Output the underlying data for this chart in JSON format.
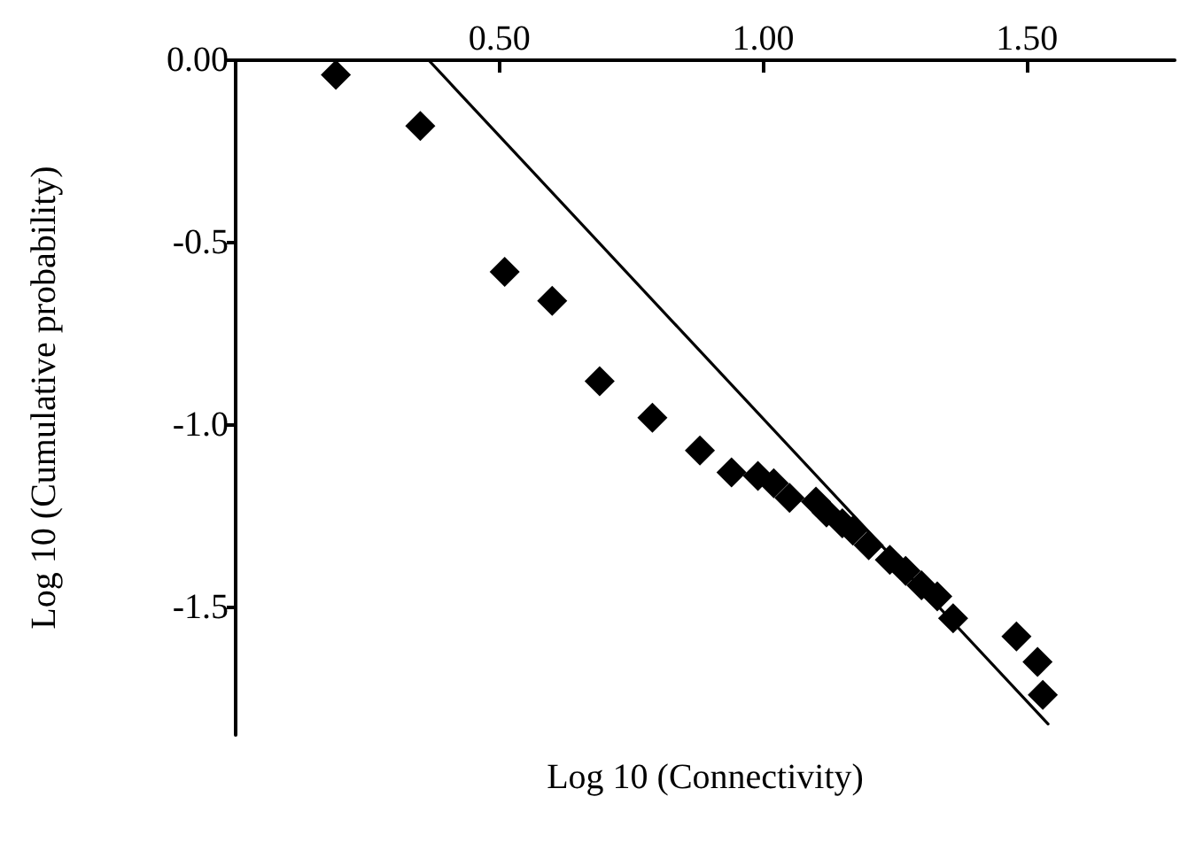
{
  "chart_data": {
    "type": "scatter",
    "xlabel": "Log 10 (Connectivity)",
    "ylabel": "Log 10 (Cumulative probability)",
    "xlim": [
      0,
      1.78
    ],
    "ylim": [
      -1.85,
      0
    ],
    "xticks": [
      {
        "value": 0.5,
        "label": "0.50"
      },
      {
        "value": 1,
        "label": "1.00"
      },
      {
        "value": 1.5,
        "label": "1.50"
      }
    ],
    "yticks": [
      {
        "value": 0,
        "label": "0.00"
      },
      -0.5,
      {
        "value": -1,
        "label": "-1.0"
      },
      -1.5
    ],
    "grid": false,
    "marker": "diamond",
    "series": [
      {
        "color": "#000000",
        "x": [
          0.19,
          0.35,
          0.51,
          0.6,
          0.69,
          0.79,
          0.88,
          0.94,
          0.99,
          1.02,
          1.05,
          1.1,
          1.12,
          1.15,
          1.17,
          1.2,
          1.24,
          1.27,
          1.3,
          1.33,
          1.36,
          1.48,
          1.52,
          1.53
        ],
        "values": [
          -0.04,
          -0.18,
          -0.58,
          -0.66,
          -0.88,
          -0.98,
          -1.07,
          -1.13,
          -1.14,
          -1.16,
          -1.2,
          -1.21,
          -1.24,
          -1.27,
          -1.29,
          -1.33,
          -1.37,
          -1.4,
          -1.44,
          -1.47,
          -1.53,
          -1.58,
          -1.65,
          -1.74
        ]
      },
      {
        "type": "line",
        "color": "#000000",
        "marker": "none",
        "line_style": "solid",
        "x": [
          0.366,
          1.54
        ],
        "values": [
          0,
          -1.82
        ]
      }
    ]
  }
}
